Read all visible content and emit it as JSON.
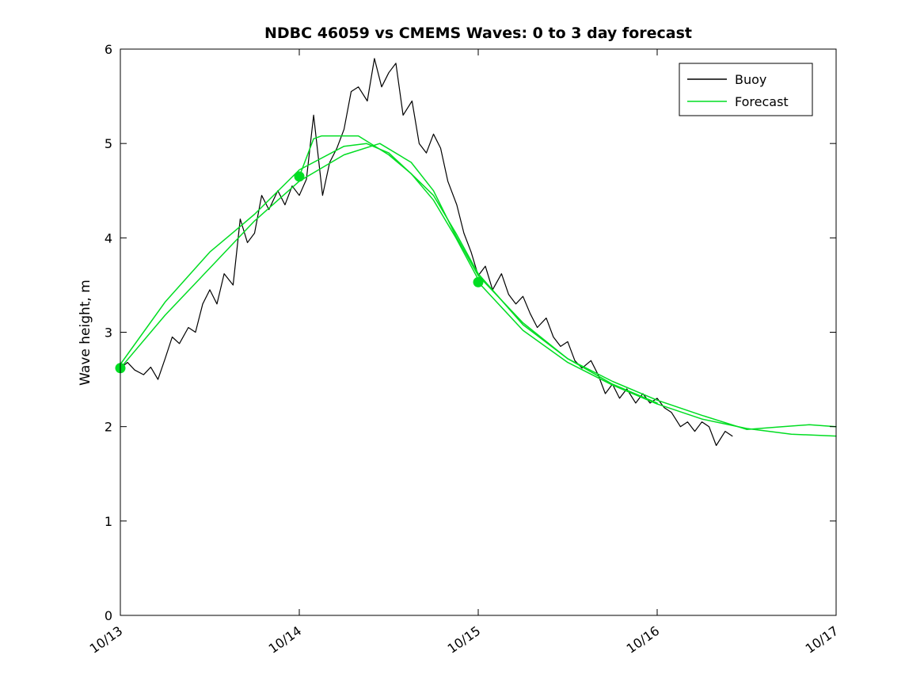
{
  "chart_data": {
    "type": "line",
    "title": "NDBC 46059 vs CMEMS Waves: 0 to 3 day forecast",
    "xlabel": "",
    "ylabel": "Wave height, m",
    "xlim": [
      0,
      4
    ],
    "ylim": [
      0,
      6
    ],
    "grid": false,
    "background": "#ffffff",
    "axis_color": "#000000",
    "x_ticks": {
      "values": [
        0,
        1,
        2,
        3,
        4
      ],
      "labels": [
        "10/13",
        "10/14",
        "10/15",
        "10/16",
        "10/17"
      ],
      "angle": -35
    },
    "y_ticks": {
      "values": [
        0,
        1,
        2,
        3,
        4,
        5,
        6
      ],
      "labels": [
        "0",
        "1",
        "2",
        "3",
        "4",
        "5",
        "6"
      ]
    },
    "legend": {
      "position": "top-right",
      "entries": [
        {
          "label": "Buoy",
          "color": "#000000"
        },
        {
          "label": "Forecast",
          "color": "#00dd22"
        }
      ]
    },
    "colors": {
      "buoy": "#000000",
      "forecast": "#00dd22"
    },
    "marker_radius": 6.5,
    "forecast_start_markers": [
      [
        0,
        2.62
      ],
      [
        1,
        4.65
      ],
      [
        2,
        3.53
      ]
    ],
    "series": [
      {
        "name": "buoy",
        "color": "#000000",
        "width": 1.2,
        "points": [
          [
            0,
            2.62
          ],
          [
            0.04,
            2.68
          ],
          [
            0.08,
            2.6
          ],
          [
            0.13,
            2.55
          ],
          [
            0.17,
            2.63
          ],
          [
            0.21,
            2.5
          ],
          [
            0.25,
            2.72
          ],
          [
            0.29,
            2.95
          ],
          [
            0.33,
            2.88
          ],
          [
            0.38,
            3.05
          ],
          [
            0.42,
            3.0
          ],
          [
            0.46,
            3.3
          ],
          [
            0.5,
            3.45
          ],
          [
            0.54,
            3.3
          ],
          [
            0.58,
            3.62
          ],
          [
            0.63,
            3.5
          ],
          [
            0.67,
            4.2
          ],
          [
            0.71,
            3.95
          ],
          [
            0.75,
            4.05
          ],
          [
            0.79,
            4.45
          ],
          [
            0.83,
            4.3
          ],
          [
            0.88,
            4.5
          ],
          [
            0.92,
            4.35
          ],
          [
            0.96,
            4.55
          ],
          [
            1.0,
            4.45
          ],
          [
            1.04,
            4.62
          ],
          [
            1.08,
            5.3
          ],
          [
            1.13,
            4.45
          ],
          [
            1.17,
            4.8
          ],
          [
            1.21,
            4.95
          ],
          [
            1.25,
            5.15
          ],
          [
            1.29,
            5.55
          ],
          [
            1.33,
            5.6
          ],
          [
            1.38,
            5.45
          ],
          [
            1.42,
            5.9
          ],
          [
            1.46,
            5.6
          ],
          [
            1.5,
            5.75
          ],
          [
            1.54,
            5.85
          ],
          [
            1.58,
            5.3
          ],
          [
            1.63,
            5.45
          ],
          [
            1.67,
            5.0
          ],
          [
            1.71,
            4.9
          ],
          [
            1.75,
            5.1
          ],
          [
            1.79,
            4.95
          ],
          [
            1.83,
            4.6
          ],
          [
            1.88,
            4.35
          ],
          [
            1.92,
            4.05
          ],
          [
            1.96,
            3.85
          ],
          [
            2.0,
            3.6
          ],
          [
            2.04,
            3.7
          ],
          [
            2.08,
            3.45
          ],
          [
            2.13,
            3.62
          ],
          [
            2.17,
            3.4
          ],
          [
            2.21,
            3.3
          ],
          [
            2.25,
            3.38
          ],
          [
            2.29,
            3.2
          ],
          [
            2.33,
            3.05
          ],
          [
            2.38,
            3.15
          ],
          [
            2.42,
            2.95
          ],
          [
            2.46,
            2.85
          ],
          [
            2.5,
            2.9
          ],
          [
            2.54,
            2.7
          ],
          [
            2.58,
            2.62
          ],
          [
            2.63,
            2.7
          ],
          [
            2.67,
            2.55
          ],
          [
            2.71,
            2.35
          ],
          [
            2.75,
            2.45
          ],
          [
            2.79,
            2.3
          ],
          [
            2.83,
            2.4
          ],
          [
            2.88,
            2.25
          ],
          [
            2.92,
            2.35
          ],
          [
            2.96,
            2.25
          ],
          [
            3.0,
            2.3
          ],
          [
            3.04,
            2.2
          ],
          [
            3.08,
            2.15
          ],
          [
            3.13,
            2.0
          ],
          [
            3.17,
            2.05
          ],
          [
            3.21,
            1.95
          ],
          [
            3.25,
            2.05
          ],
          [
            3.29,
            2.0
          ],
          [
            3.33,
            1.8
          ],
          [
            3.38,
            1.95
          ],
          [
            3.42,
            1.9
          ]
        ]
      },
      {
        "name": "forecast_run_1",
        "color": "#00dd22",
        "width": 1.5,
        "points": [
          [
            0,
            2.66
          ],
          [
            0.25,
            3.32
          ],
          [
            0.5,
            3.85
          ],
          [
            0.625,
            4.05
          ],
          [
            0.75,
            4.25
          ],
          [
            1.0,
            4.72
          ],
          [
            1.25,
            4.97
          ],
          [
            1.375,
            5.0
          ],
          [
            1.5,
            4.9
          ],
          [
            1.625,
            4.68
          ],
          [
            1.75,
            4.4
          ],
          [
            1.875,
            4.0
          ],
          [
            2.0,
            3.56
          ]
        ]
      },
      {
        "name": "forecast_run_2",
        "color": "#00dd22",
        "width": 1.5,
        "points": [
          [
            0,
            2.62
          ],
          [
            0.25,
            3.18
          ],
          [
            0.5,
            3.68
          ],
          [
            0.75,
            4.18
          ],
          [
            1.0,
            4.6
          ],
          [
            1.25,
            4.88
          ],
          [
            1.45,
            5.0
          ],
          [
            1.625,
            4.8
          ],
          [
            1.75,
            4.5
          ],
          [
            1.875,
            4.02
          ],
          [
            2.0,
            3.6
          ],
          [
            2.25,
            3.1
          ],
          [
            2.5,
            2.72
          ],
          [
            2.75,
            2.45
          ],
          [
            3.0,
            2.25
          ]
        ]
      },
      {
        "name": "forecast_run_3",
        "color": "#00dd22",
        "width": 1.5,
        "points": [
          [
            1.0,
            4.65
          ],
          [
            1.08,
            5.05
          ],
          [
            1.125,
            5.08
          ],
          [
            1.33,
            5.08
          ],
          [
            1.5,
            4.88
          ],
          [
            1.625,
            4.68
          ],
          [
            1.75,
            4.45
          ],
          [
            1.875,
            4.05
          ],
          [
            2.0,
            3.62
          ],
          [
            2.25,
            3.08
          ],
          [
            2.5,
            2.72
          ],
          [
            2.75,
            2.48
          ],
          [
            3.0,
            2.28
          ],
          [
            3.25,
            2.12
          ],
          [
            3.5,
            1.97
          ],
          [
            3.7,
            2.0
          ],
          [
            3.85,
            2.02
          ],
          [
            4.0,
            2.0
          ]
        ]
      },
      {
        "name": "forecast_run_4",
        "color": "#00dd22",
        "width": 1.5,
        "points": [
          [
            2.0,
            3.53
          ],
          [
            2.25,
            3.02
          ],
          [
            2.5,
            2.68
          ],
          [
            2.75,
            2.44
          ],
          [
            3.0,
            2.24
          ],
          [
            3.25,
            2.08
          ],
          [
            3.5,
            1.98
          ],
          [
            3.75,
            1.92
          ],
          [
            4.0,
            1.9
          ]
        ]
      }
    ]
  }
}
